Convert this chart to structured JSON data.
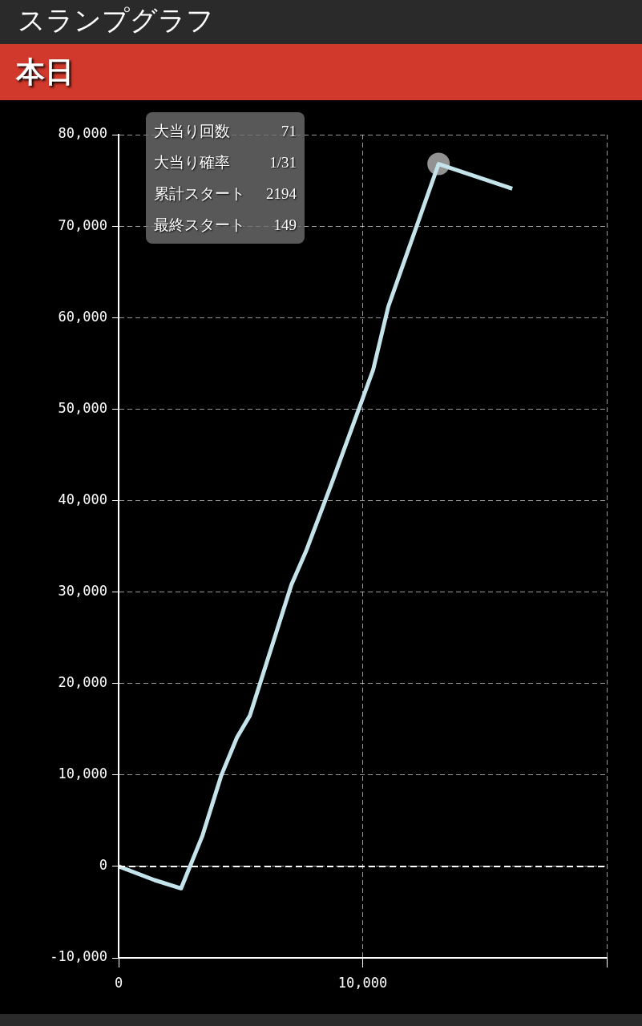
{
  "chart_data": {
    "type": "line",
    "title": "スランプグラフ",
    "subtitle": "本日",
    "x": [
      0,
      1475,
      2560,
      3440,
      4200,
      4850,
      5380,
      7080,
      7670,
      8720,
      10430,
      11050,
      13110,
      16130
    ],
    "series": [
      {
        "color": "#c5e3ea",
        "values": [
          0,
          -1500,
          -2400,
          3400,
          9900,
          14100,
          16500,
          30800,
          34400,
          41800,
          54300,
          61200,
          76800,
          74100
        ]
      },
      {
        "type": "scatter",
        "color": "#a9a9a9",
        "marker": "circle",
        "x": [
          13110
        ],
        "values": [
          76800
        ]
      }
    ],
    "xlim": [
      0,
      20000
    ],
    "xticks": [
      {
        "value": 0,
        "label": "0"
      },
      {
        "value": 10000,
        "label": "10,000"
      },
      {
        "value": 20000,
        "label": null
      }
    ],
    "ylim": [
      -10000,
      80000
    ],
    "yticks": [
      {
        "value": -10000,
        "label": "-10,000"
      },
      {
        "value": 0,
        "label": "0"
      },
      {
        "value": 10000,
        "label": "10,000"
      },
      {
        "value": 20000,
        "label": "20,000"
      },
      {
        "value": 30000,
        "label": "30,000"
      },
      {
        "value": 40000,
        "label": "40,000"
      },
      {
        "value": 50000,
        "label": "50,000"
      },
      {
        "value": 60000,
        "label": "60,000"
      },
      {
        "value": 70000,
        "label": "70,000"
      },
      {
        "value": 80000,
        "label": "80,000"
      }
    ],
    "ref_lines": [
      {
        "axis": "y",
        "value": 0,
        "color": "#ffffff",
        "line_style": "dashed"
      }
    ],
    "grid": true,
    "legend": false,
    "marker": "none",
    "line_style": "solid",
    "annotations": [
      "大当り回数 71",
      "大当り確率 1/31",
      "累計スタート 2194",
      "最終スタート 149"
    ]
  }
}
